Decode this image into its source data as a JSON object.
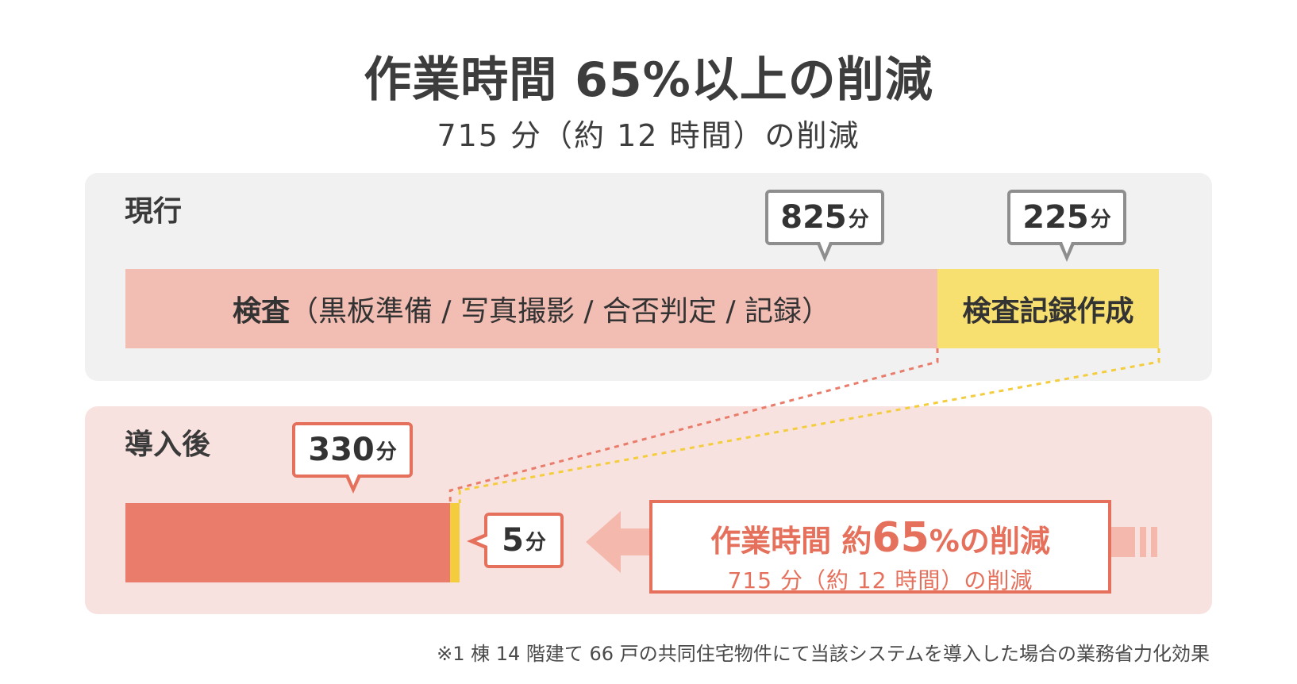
{
  "header": {
    "title": "作業時間 65%以上の削減",
    "subtitle": "715 分（約 12 時間）の削減"
  },
  "chart_data": {
    "type": "bar",
    "unit": "分",
    "categories": [
      "現行",
      "導入後"
    ],
    "series": [
      {
        "name": "検査（黒板準備 / 写真撮影 / 合否判定 / 記録）",
        "values": [
          825,
          330
        ]
      },
      {
        "name": "検査記録作成",
        "values": [
          225,
          5
        ]
      }
    ]
  },
  "current": {
    "label": "現行",
    "inspection_bold": "検査",
    "inspection_detail": "（黒板準備 / 写真撮影 / 合否判定 / 記録）",
    "record_label": "検査記録作成",
    "inspection_value": "825",
    "record_value": "225",
    "unit": "分"
  },
  "after": {
    "label": "導入後",
    "inspection_value": "330",
    "record_value": "5",
    "unit": "分"
  },
  "reduction": {
    "prefix": "作業時間 約",
    "number": "65",
    "suffix": "%の削減",
    "sub": "715 分（約 12 時間）の削減"
  },
  "footnote": "※1 棟 14 階建て 66 戸の共同住宅物件にて当該システムを導入した場合の業務省力化効果",
  "colors": {
    "inspection_current": "#f2bdb3",
    "record_current": "#f7e070",
    "inspection_after": "#e97c6a",
    "record_after": "#f4cd3f",
    "accent": "#e5705c"
  }
}
